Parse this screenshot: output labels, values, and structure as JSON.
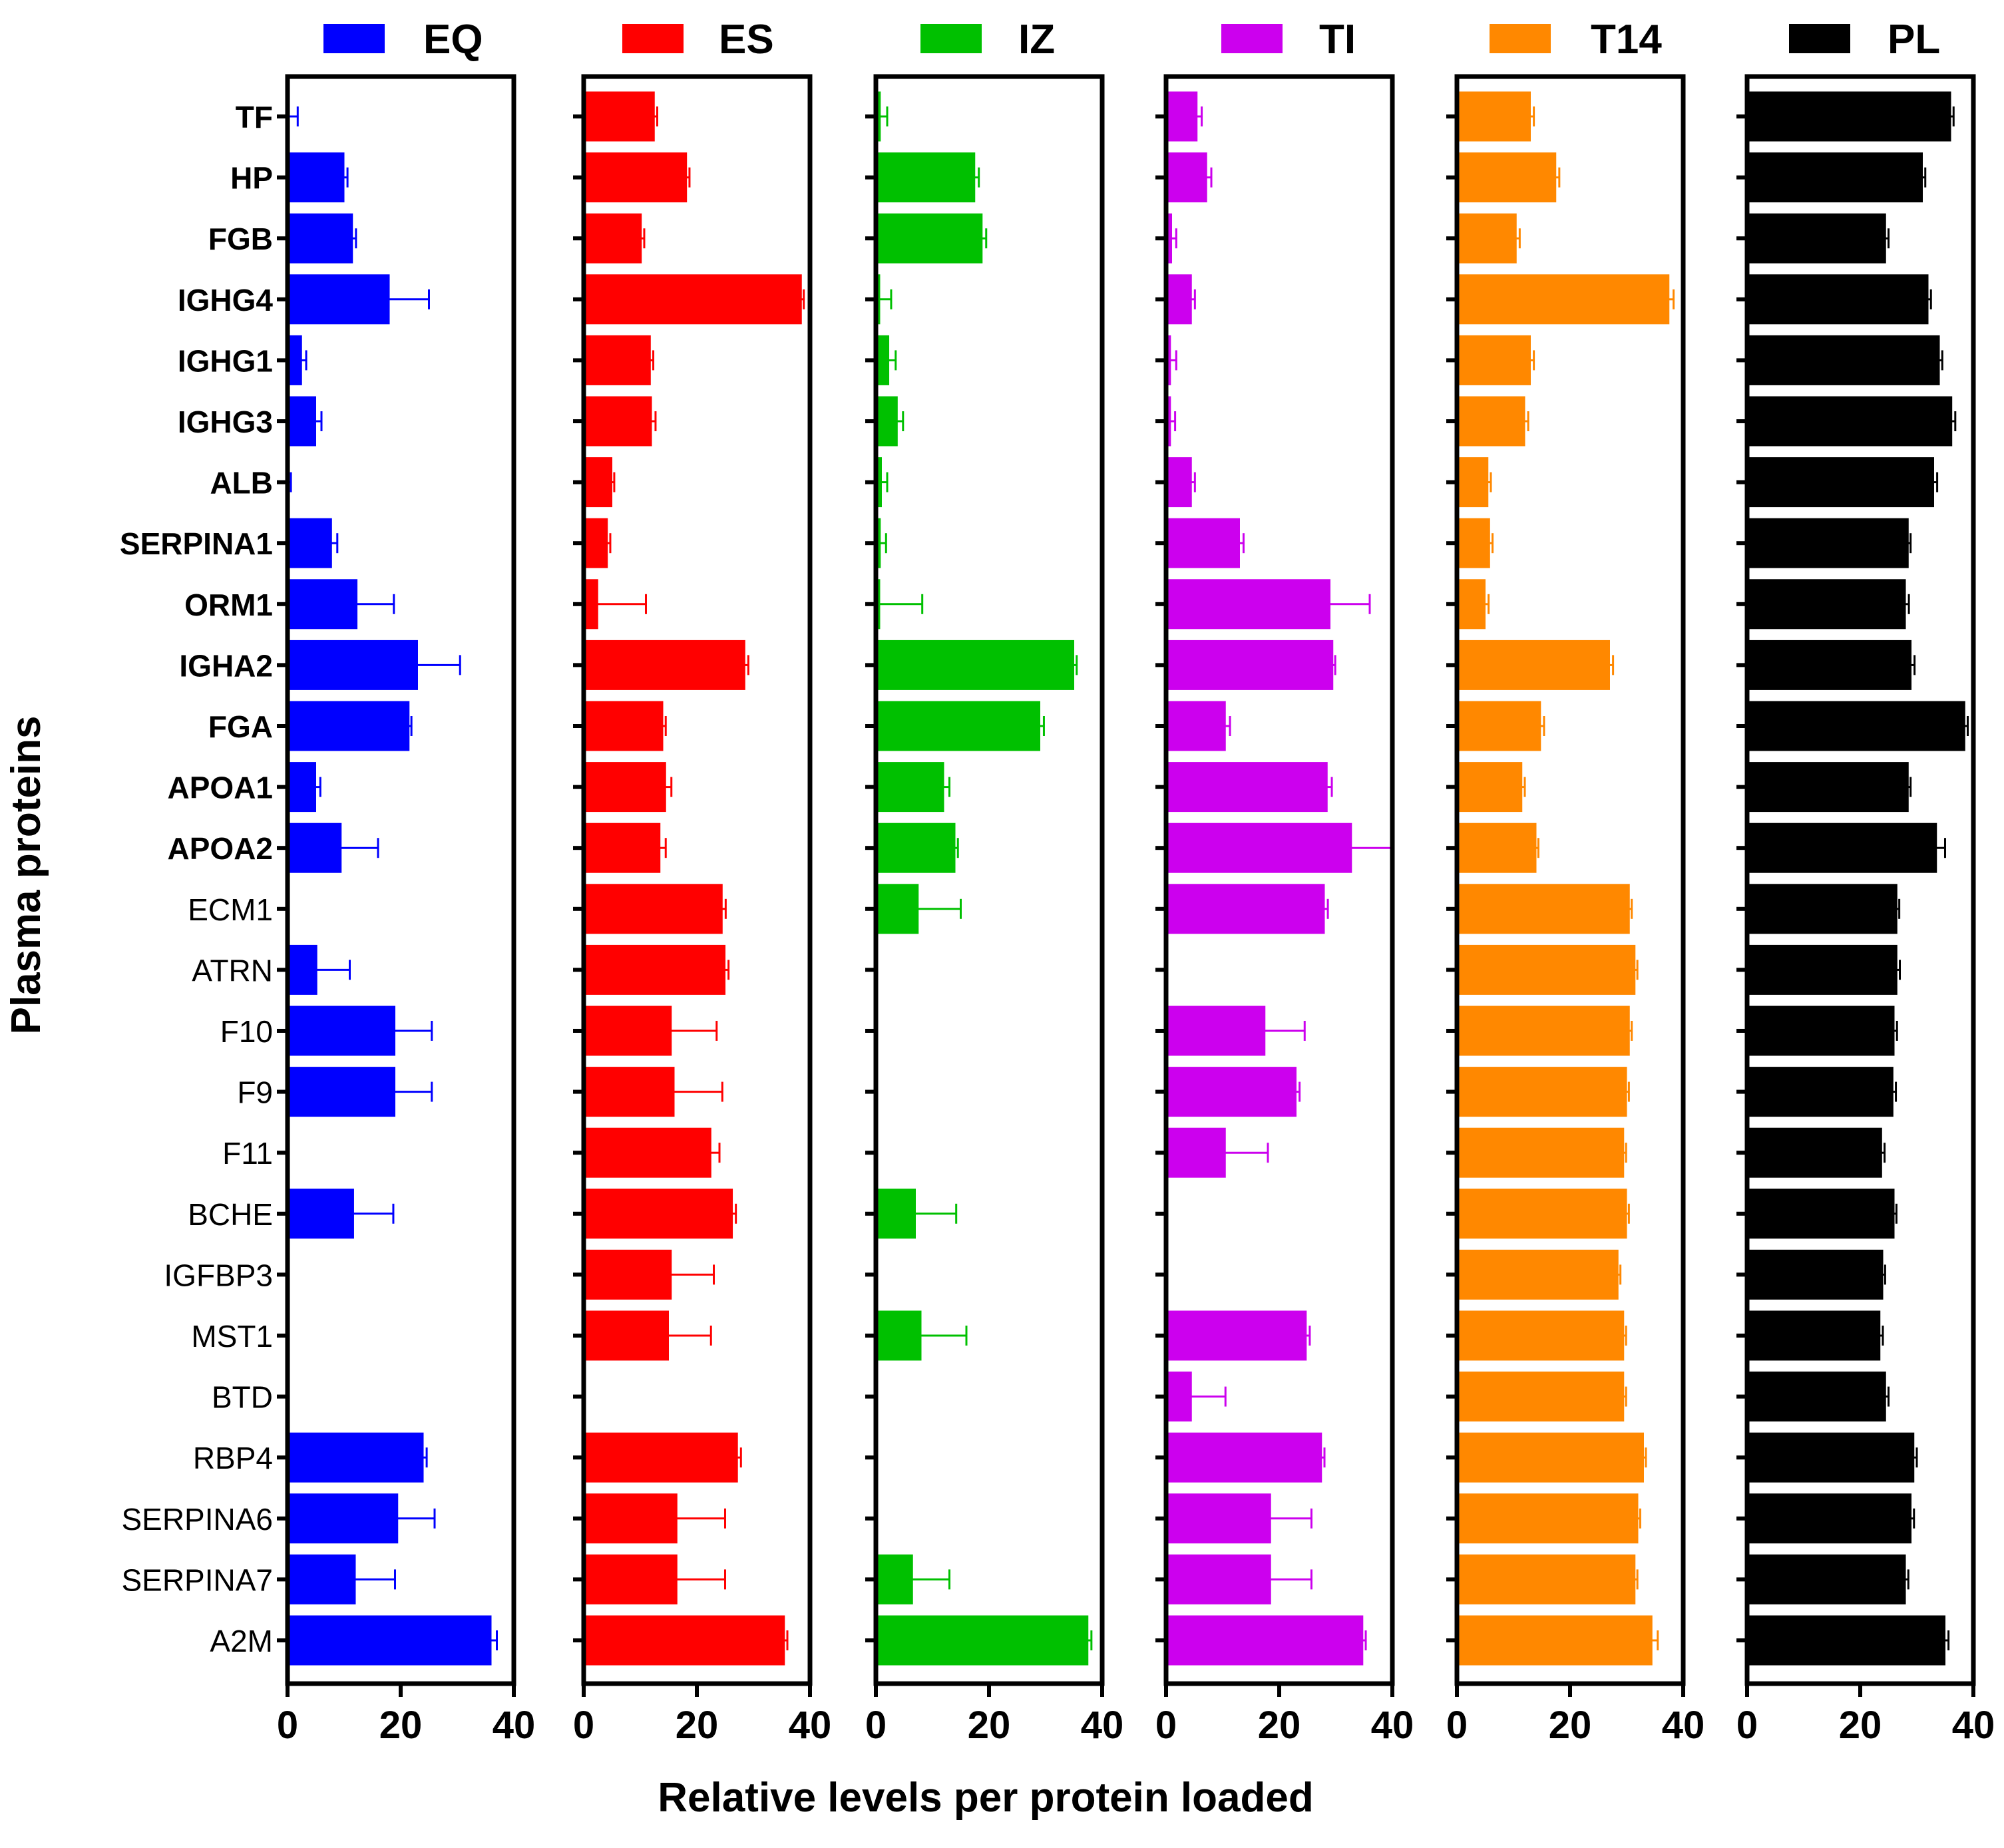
{
  "chart_data": {
    "type": "bar",
    "orientation": "horizontal",
    "xlabel": "Relative levels per protein loaded",
    "ylabel": "Plasma proteins",
    "xlim": [
      0,
      40
    ],
    "xticks": [
      0,
      20,
      40
    ],
    "categories": [
      "TF",
      "HP",
      "FGB",
      "IGHG4",
      "IGHG1",
      "IGHG3",
      "ALB",
      "SERPINA1",
      "ORM1",
      "IGHA2",
      "FGA",
      "APOA1",
      "APOA2",
      "ECM1",
      "ATRN",
      "F10",
      "F9",
      "F11",
      "BCHE",
      "IGFBP3",
      "MST1",
      "BTD",
      "RBP4",
      "SERPINA6",
      "SERPINA7",
      "A2M"
    ],
    "bold_categories": [
      "TF",
      "HP",
      "FGB",
      "IGHG4",
      "IGHG1",
      "IGHG3",
      "ALB",
      "SERPINA1",
      "ORM1",
      "IGHA2",
      "FGA",
      "APOA1",
      "APOA2"
    ],
    "series": [
      {
        "name": "EQ",
        "color": "#0000ff",
        "values": [
          0.3,
          10,
          11.5,
          18,
          2.5,
          5,
          0.3,
          7.8,
          12.3,
          23,
          21.5,
          5,
          9.5,
          null,
          5.2,
          19,
          19,
          null,
          11.7,
          null,
          null,
          null,
          24,
          19.5,
          12,
          36
        ],
        "errors": [
          1.5,
          0.6,
          0.6,
          7,
          0.8,
          1,
          0.3,
          1,
          6.5,
          7.5,
          0.4,
          0.8,
          6.5,
          null,
          5.8,
          6.5,
          6.5,
          null,
          7,
          null,
          null,
          null,
          0.6,
          6.5,
          7,
          1
        ]
      },
      {
        "name": "ES",
        "color": "#ff0000",
        "values": [
          12.5,
          18.2,
          10.2,
          38.5,
          11.8,
          12,
          5,
          4.2,
          2.5,
          28.5,
          14,
          14.5,
          13.5,
          24.5,
          25,
          15.5,
          16,
          22.5,
          26.3,
          15.5,
          15,
          null,
          27.2,
          16.5,
          16.5,
          35.5
        ],
        "errors": [
          0.5,
          0.5,
          0.5,
          0.4,
          0.5,
          0.7,
          0.4,
          0.5,
          8.5,
          0.6,
          0.5,
          1,
          1,
          0.6,
          0.6,
          8,
          8.5,
          1.5,
          0.6,
          7.5,
          7.5,
          null,
          0.6,
          8.5,
          8.5,
          0.5
        ]
      },
      {
        "name": "IZ",
        "color": "#00c000",
        "values": [
          0.8,
          17.5,
          18.8,
          0.7,
          2.3,
          3.8,
          1,
          0.8,
          0.7,
          35,
          29,
          12,
          14,
          7.5,
          null,
          null,
          null,
          null,
          7,
          null,
          8,
          null,
          null,
          null,
          6.5,
          37.5
        ],
        "errors": [
          1.2,
          0.7,
          0.7,
          2,
          1.2,
          1,
          1,
          1,
          7.5,
          0.5,
          0.7,
          1,
          0.5,
          7.5,
          null,
          null,
          null,
          null,
          7.2,
          null,
          8,
          null,
          null,
          null,
          6.5,
          0.6
        ]
      },
      {
        "name": "TI",
        "color": "#cc00ee",
        "values": [
          5.5,
          7.2,
          1,
          4.5,
          0.8,
          0.8,
          4.5,
          13,
          29,
          29.5,
          10.5,
          28.5,
          32.8,
          28,
          null,
          17.5,
          23,
          10.5,
          null,
          null,
          24.8,
          4.5,
          27.5,
          18.5,
          18.5,
          34.8
        ],
        "errors": [
          0.8,
          0.8,
          0.8,
          0.6,
          1,
          0.8,
          0.6,
          0.7,
          7,
          0.4,
          0.8,
          0.8,
          7.2,
          0.6,
          null,
          7,
          0.6,
          7.5,
          null,
          null,
          0.6,
          6,
          0.5,
          7.2,
          7.2,
          0.5
        ]
      },
      {
        "name": "T14",
        "color": "#ff8800",
        "values": [
          13,
          17.5,
          10.5,
          37.5,
          13,
          12,
          5.5,
          5.8,
          5,
          27,
          14.8,
          11.5,
          14,
          30.5,
          31.5,
          30.5,
          30,
          29.5,
          30,
          28.5,
          29.5,
          29.5,
          33,
          32,
          31.5,
          34.5
        ],
        "errors": [
          0.6,
          0.6,
          0.6,
          0.8,
          0.6,
          0.6,
          0.5,
          0.5,
          0.6,
          0.6,
          0.6,
          0.5,
          0.4,
          0.4,
          0.4,
          0.4,
          0.4,
          0.4,
          0.4,
          0.4,
          0.4,
          0.4,
          0.4,
          0.4,
          0.4,
          1
        ]
      },
      {
        "name": "PL",
        "color": "#000000",
        "values": [
          36,
          31,
          24.5,
          32,
          34,
          36.2,
          33,
          28.5,
          28,
          29,
          38.5,
          28.5,
          33.5,
          26.5,
          26.5,
          26,
          25.8,
          23.8,
          26,
          24,
          23.5,
          24.5,
          29.5,
          29,
          28,
          35
        ],
        "errors": [
          0.5,
          0.5,
          0.5,
          0.5,
          0.5,
          0.6,
          0.6,
          0.4,
          0.6,
          0.6,
          0.5,
          0.4,
          1.5,
          0.4,
          0.5,
          0.5,
          0.5,
          0.5,
          0.4,
          0.4,
          0.5,
          0.5,
          0.5,
          0.5,
          0.5,
          0.6
        ]
      }
    ],
    "legend_placement": "top"
  }
}
